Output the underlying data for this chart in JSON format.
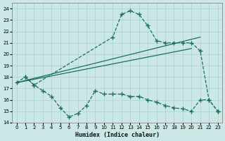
{
  "xlabel": "Humidex (Indice chaleur)",
  "xlim": [
    -0.5,
    23.5
  ],
  "ylim": [
    14,
    24.5
  ],
  "yticks": [
    14,
    15,
    16,
    17,
    18,
    19,
    20,
    21,
    22,
    23,
    24
  ],
  "xticks": [
    0,
    1,
    2,
    3,
    4,
    5,
    6,
    7,
    8,
    9,
    10,
    11,
    12,
    13,
    14,
    15,
    16,
    17,
    18,
    19,
    20,
    21,
    22,
    23
  ],
  "bg_color": "#cbe8e6",
  "grid_color": "#a8d0ce",
  "line_color": "#1a6e64",
  "line1_x": [
    0,
    1,
    2,
    11,
    12,
    13,
    14,
    15,
    16,
    17,
    18,
    19,
    20,
    21,
    22,
    23
  ],
  "line1_y": [
    17.5,
    18.0,
    17.3,
    21.5,
    23.5,
    23.8,
    23.5,
    22.5,
    21.2,
    21.0,
    21.0,
    21.0,
    21.0,
    20.3,
    16.0,
    15.0
  ],
  "line2_x": [
    0,
    21
  ],
  "line2_y": [
    17.5,
    21.5
  ],
  "line3_x": [
    0,
    20
  ],
  "line3_y": [
    17.5,
    20.5
  ],
  "line4_x": [
    1,
    2,
    3,
    4,
    5,
    6,
    7,
    8,
    9,
    10,
    11,
    12,
    13,
    14,
    15,
    16,
    17,
    18,
    19,
    20,
    21,
    22,
    23
  ],
  "line4_y": [
    18.0,
    17.3,
    16.8,
    16.3,
    15.3,
    14.5,
    14.8,
    15.5,
    16.8,
    16.5,
    16.5,
    16.5,
    16.3,
    16.3,
    16.0,
    15.8,
    15.5,
    15.3,
    15.2,
    15.0,
    16.0,
    16.0,
    15.0
  ]
}
